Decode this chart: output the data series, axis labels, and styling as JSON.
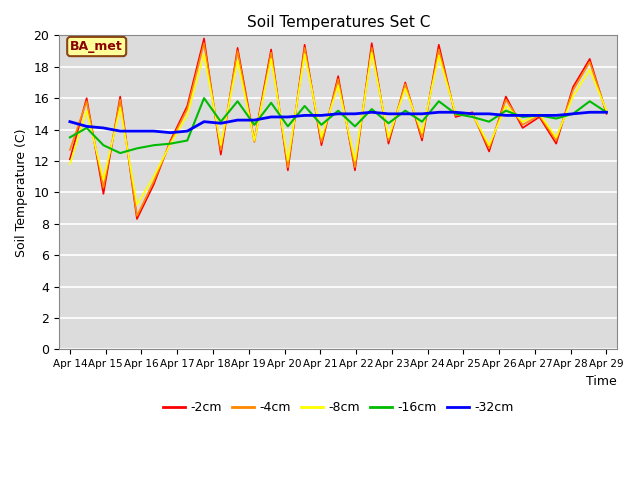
{
  "title": "Soil Temperatures Set C",
  "xlabel": "Time",
  "ylabel": "Soil Temperature (C)",
  "ylim": [
    0,
    20
  ],
  "yticks": [
    0,
    2,
    4,
    6,
    8,
    10,
    12,
    14,
    16,
    18,
    20
  ],
  "plot_bg_color": "#dcdcdc",
  "annotation_text": "BA_met",
  "annotation_bg": "#ffff99",
  "annotation_border": "#8B4513",
  "legend_entries": [
    "-2cm",
    "-4cm",
    "-8cm",
    "-16cm",
    "-32cm"
  ],
  "line_colors": [
    "#ff0000",
    "#ff8800",
    "#ffff00",
    "#00bb00",
    "#0000ff"
  ],
  "line_widths": [
    1.2,
    1.2,
    1.2,
    1.5,
    2.0
  ],
  "x_tick_labels": [
    "Apr 14",
    "Apr 15",
    "Apr 16",
    "Apr 17",
    "Apr 18",
    "Apr 19",
    "Apr 20",
    "Apr 21",
    "Apr 22",
    "Apr 23",
    "Apr 24",
    "Apr 25",
    "Apr 26",
    "Apr 27",
    "Apr 28",
    "Apr 29"
  ],
  "series": {
    "neg2cm": [
      12.1,
      16.0,
      9.9,
      16.1,
      8.3,
      10.5,
      13.3,
      15.5,
      19.8,
      12.4,
      19.2,
      13.3,
      19.1,
      11.4,
      19.4,
      13.0,
      17.4,
      11.4,
      19.5,
      13.1,
      17.0,
      13.3,
      19.4,
      14.8,
      15.1,
      12.6,
      16.1,
      14.1,
      14.8,
      13.1,
      16.7,
      18.5,
      15.0
    ],
    "neg4cm": [
      12.7,
      15.8,
      10.3,
      15.9,
      8.5,
      10.7,
      13.2,
      15.3,
      19.5,
      12.7,
      19.0,
      13.2,
      18.9,
      11.6,
      19.2,
      13.2,
      17.2,
      11.6,
      19.2,
      13.3,
      16.9,
      13.5,
      19.1,
      14.9,
      15.0,
      12.8,
      15.9,
      14.3,
      14.9,
      13.3,
      16.5,
      18.3,
      15.1
    ],
    "neg8cm": [
      11.8,
      15.2,
      10.8,
      15.4,
      9.2,
      11.0,
      13.1,
      14.9,
      18.8,
      13.0,
      18.4,
      13.3,
      18.5,
      12.0,
      18.8,
      13.5,
      16.8,
      12.0,
      18.9,
      13.5,
      16.6,
      13.8,
      18.7,
      15.0,
      15.0,
      13.0,
      15.5,
      14.5,
      15.0,
      13.5,
      16.1,
      17.8,
      15.2
    ],
    "neg16cm": [
      13.5,
      14.1,
      13.0,
      12.5,
      12.8,
      13.0,
      13.1,
      13.3,
      16.0,
      14.5,
      15.8,
      14.3,
      15.7,
      14.2,
      15.5,
      14.3,
      15.2,
      14.2,
      15.3,
      14.4,
      15.2,
      14.5,
      15.8,
      15.0,
      14.8,
      14.5,
      15.2,
      14.8,
      14.9,
      14.7,
      15.0,
      15.8,
      15.1
    ],
    "neg32cm": [
      14.5,
      14.2,
      14.1,
      13.9,
      13.9,
      13.9,
      13.8,
      13.9,
      14.5,
      14.4,
      14.6,
      14.6,
      14.8,
      14.8,
      14.9,
      14.9,
      15.0,
      15.0,
      15.1,
      15.0,
      15.0,
      15.0,
      15.1,
      15.1,
      15.0,
      15.0,
      14.9,
      14.9,
      14.9,
      14.9,
      15.0,
      15.1,
      15.1
    ]
  }
}
